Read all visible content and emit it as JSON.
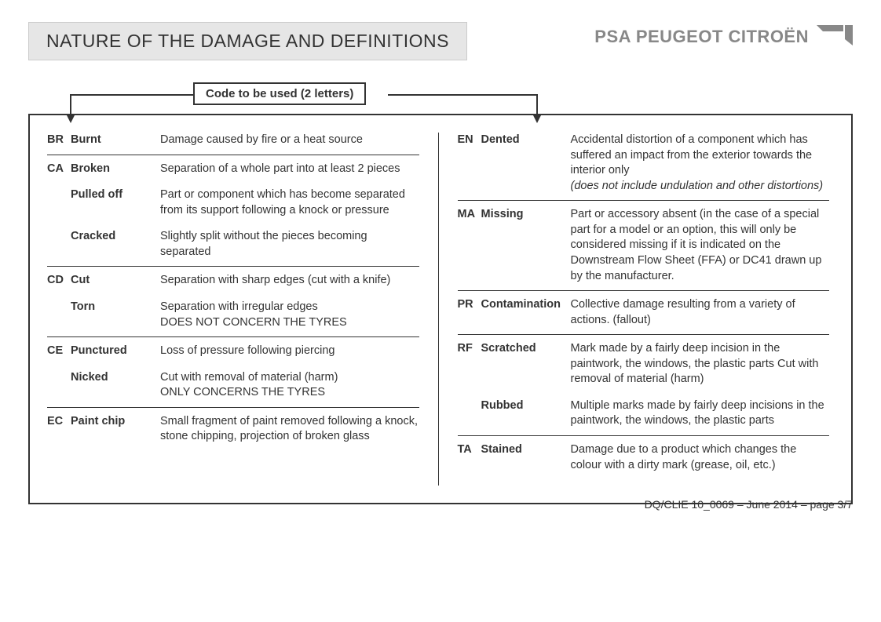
{
  "header": {
    "title": "NATURE OF THE DAMAGE AND DEFINITIONS",
    "brand": "PSA PEUGEOT CITROËN"
  },
  "code_label": "Code to be used (2 letters)",
  "left": [
    {
      "code": "BR",
      "term": "Burnt",
      "def": "Damage caused by fire or a heat source",
      "subs": [],
      "hr": true
    },
    {
      "code": "CA",
      "term": "Broken",
      "def": "Separation of a whole part into at least 2 pieces",
      "subs": [
        {
          "term": "Pulled off",
          "def": "Part or component which has become separated from its support following a knock or pressure"
        },
        {
          "term": "Cracked",
          "def": "Slightly split without the pieces becoming separated"
        }
      ],
      "hr": true
    },
    {
      "code": "CD",
      "term": "Cut",
      "def": "Separation with sharp edges (cut with a knife)",
      "subs": [
        {
          "term": "Torn",
          "def": "Separation with irregular edges\nDOES NOT CONCERN THE TYRES"
        }
      ],
      "hr": true
    },
    {
      "code": "CE",
      "term": "Punctured",
      "def": "Loss of pressure following piercing",
      "subs": [
        {
          "term": "Nicked",
          "def": "Cut with removal of material (harm)\nONLY CONCERNS THE TYRES"
        }
      ],
      "hr": true
    },
    {
      "code": "EC",
      "term": "Paint chip",
      "def": "Small fragment of paint removed following a knock, stone chipping, projection of broken glass",
      "subs": [],
      "hr": false
    }
  ],
  "right": [
    {
      "code": "EN",
      "term": "Dented",
      "def": "Accidental distortion of a component which has suffered an impact from the exterior towards the interior only",
      "def_ital": "(does not include undulation and other distortions)",
      "subs": [],
      "hr": true
    },
    {
      "code": "MA",
      "term": "Missing",
      "def": "Part or accessory absent (in the case of a special part for a model or an option, this will only be considered missing if it is indicated on the Downstream Flow Sheet (FFA) or DC41 drawn up by the manufacturer.",
      "subs": [],
      "hr": true
    },
    {
      "code": "PR",
      "term": "Contamination",
      "def": "Collective damage resulting from a variety of actions. (fallout)",
      "subs": [],
      "hr": true
    },
    {
      "code": "RF",
      "term": "Scratched",
      "def": "Mark made by a fairly deep incision in the paintwork, the windows, the plastic parts Cut with removal of material (harm)",
      "subs": [
        {
          "term": "Rubbed",
          "def": "Multiple marks made by fairly deep incisions in the paintwork, the windows, the plastic parts"
        }
      ],
      "hr": true
    },
    {
      "code": "TA",
      "term": "Stained",
      "def": "Damage due to a product which changes the colour with a dirty mark (grease, oil, etc.)",
      "subs": [],
      "hr": false
    }
  ],
  "footer": "DQ/CLIE 10_0069 – June 2014 – page 3/7",
  "style": {
    "page_bg": "#ffffff",
    "title_bg": "#e6e6e6",
    "border_color": "#333333",
    "brand_color": "#888888",
    "text_color": "#333333",
    "font_size_body": 14.5,
    "font_size_title": 23,
    "box_border_width": 2
  }
}
